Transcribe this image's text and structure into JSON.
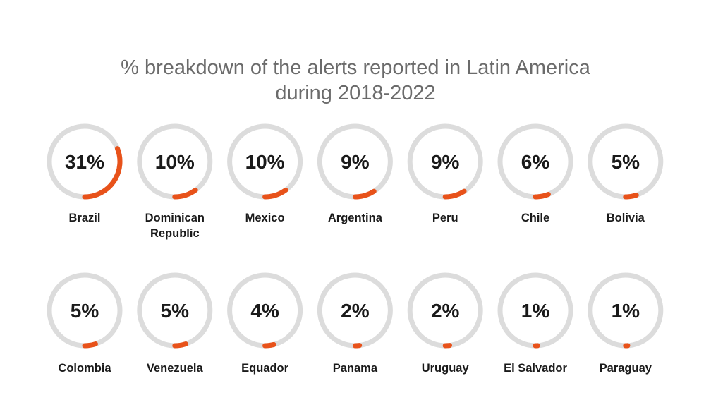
{
  "chart_data": {
    "type": "donut-grid",
    "title": "% breakdown of the alerts reported in Latin America during 2018-2022",
    "title_lines": [
      "% breakdown of the alerts reported in Latin America",
      "during 2018-2022"
    ],
    "colors": {
      "track": "#dcdcdc",
      "value": "#e8521a"
    },
    "items": [
      {
        "label": [
          "Brazil"
        ],
        "value": 31,
        "display": "31%"
      },
      {
        "label": [
          "Dominican",
          "Republic"
        ],
        "value": 10,
        "display": "10%"
      },
      {
        "label": [
          "Mexico"
        ],
        "value": 10,
        "display": "10%"
      },
      {
        "label": [
          "Argentina"
        ],
        "value": 9,
        "display": "9%"
      },
      {
        "label": [
          "Peru"
        ],
        "value": 9,
        "display": "9%"
      },
      {
        "label": [
          "Chile"
        ],
        "value": 6,
        "display": "6%"
      },
      {
        "label": [
          "Bolivia"
        ],
        "value": 5,
        "display": "5%"
      },
      {
        "label": [
          "Colombia"
        ],
        "value": 5,
        "display": "5%"
      },
      {
        "label": [
          "Venezuela"
        ],
        "value": 5,
        "display": "5%"
      },
      {
        "label": [
          "Equador"
        ],
        "value": 4,
        "display": "4%"
      },
      {
        "label": [
          "Panama"
        ],
        "value": 2,
        "display": "2%"
      },
      {
        "label": [
          "Uruguay"
        ],
        "value": 2,
        "display": "2%"
      },
      {
        "label": [
          "El Salvador"
        ],
        "value": 1,
        "display": "1%"
      },
      {
        "label": [
          "Paraguay"
        ],
        "value": 1,
        "display": "1%"
      }
    ]
  }
}
